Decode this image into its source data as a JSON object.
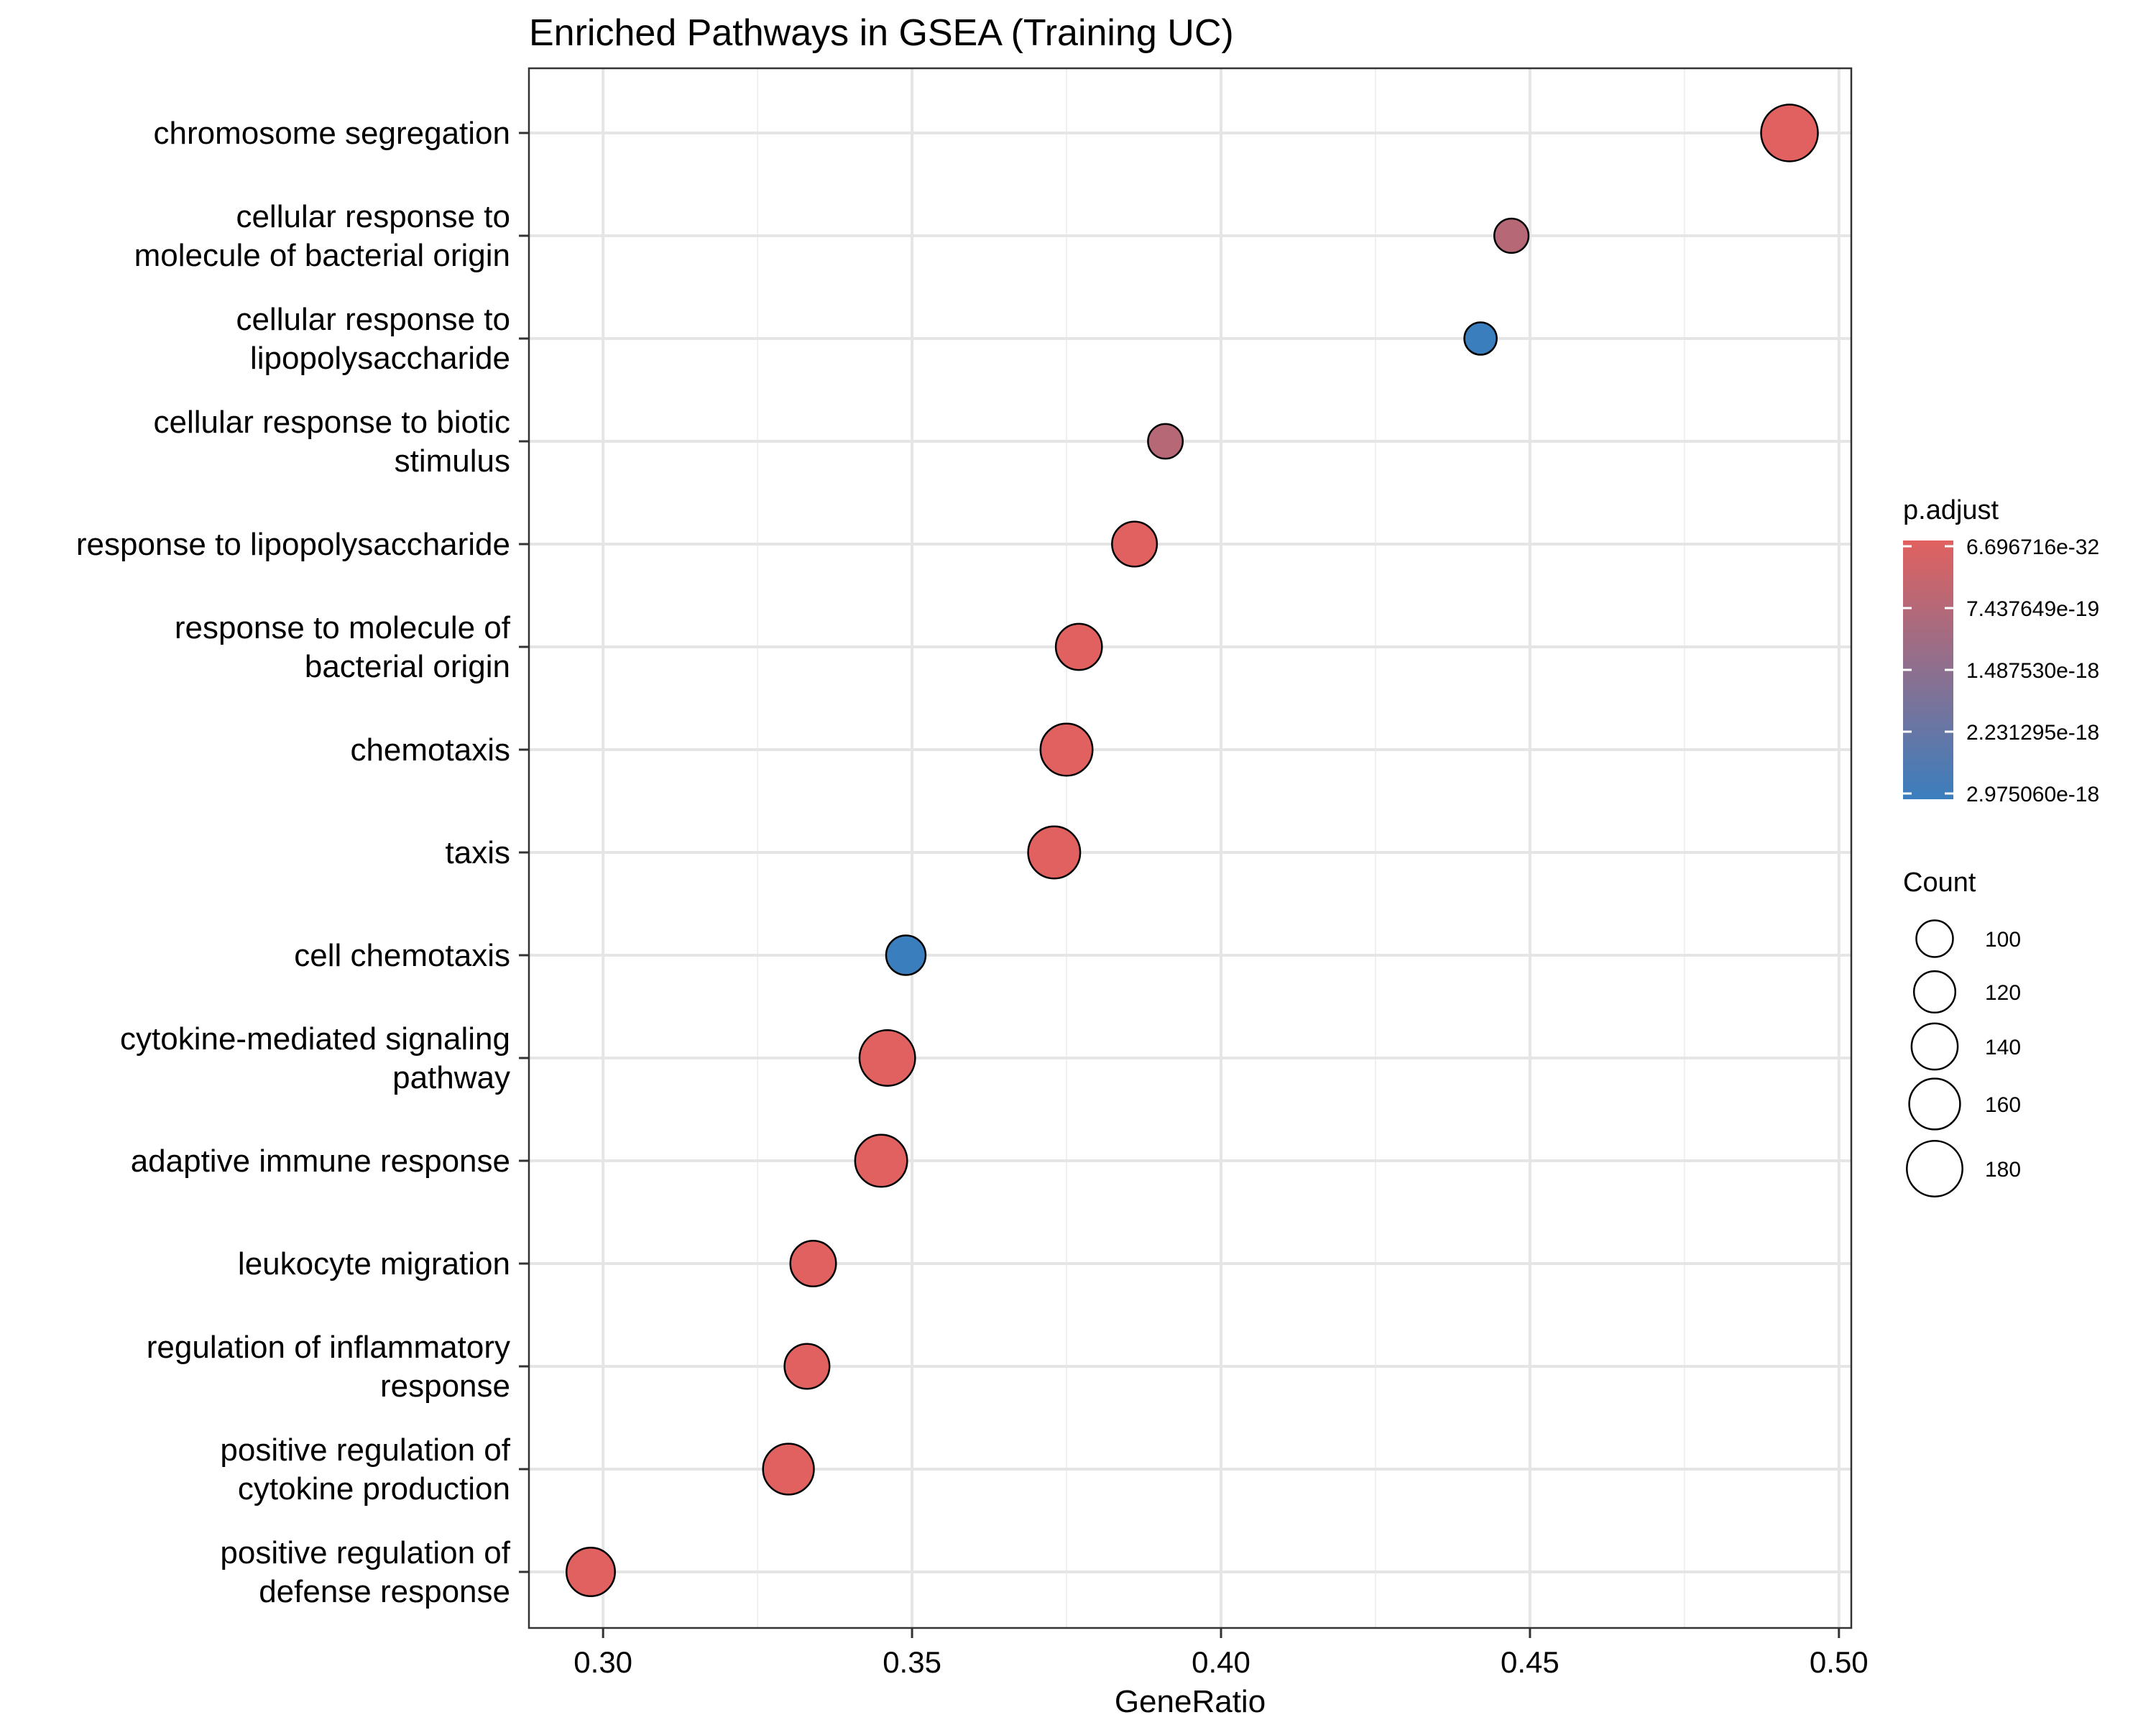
{
  "chart_data": {
    "type": "scatter",
    "title": "Enriched Pathways in GSEA (Training UC)",
    "xlabel": "GeneRatio",
    "ylabel": "",
    "xlim": [
      0.288,
      0.502
    ],
    "xticks": [
      0.3,
      0.35,
      0.4,
      0.45,
      0.5
    ],
    "xtick_labels": [
      "0.30",
      "0.35",
      "0.40",
      "0.45",
      "0.50"
    ],
    "grid": true,
    "categories": [
      "chromosome segregation",
      "cellular response to\nmolecule of bacterial origin",
      "cellular response to\nlipopolysaccharide",
      "cellular response to biotic\nstimulus",
      "response to lipopolysaccharide",
      "response to molecule of\nbacterial origin",
      "chemotaxis",
      "taxis",
      "cell chemotaxis",
      "cytokine-mediated signaling\npathway",
      "adaptive immune response",
      "leukocyte migration",
      "regulation of inflammatory\nresponse",
      "positive regulation of\ncytokine production",
      "positive regulation of\ndefense response"
    ],
    "points": [
      {
        "term": "chromosome segregation",
        "gene_ratio": 0.492,
        "count": 185,
        "p_adjust": 6.7e-32
      },
      {
        "term": "cellular response to molecule of bacterial origin",
        "gene_ratio": 0.447,
        "count": 90,
        "p_adjust": 7.4e-19
      },
      {
        "term": "cellular response to lipopolysaccharide",
        "gene_ratio": 0.442,
        "count": 82,
        "p_adjust": 2.975e-18
      },
      {
        "term": "cellular response to biotic stimulus",
        "gene_ratio": 0.391,
        "count": 92,
        "p_adjust": 7.4e-19
      },
      {
        "term": "response to lipopolysaccharide",
        "gene_ratio": 0.386,
        "count": 135,
        "p_adjust": 1e-25
      },
      {
        "term": "response to molecule of bacterial origin",
        "gene_ratio": 0.377,
        "count": 140,
        "p_adjust": 1e-25
      },
      {
        "term": "chemotaxis",
        "gene_ratio": 0.375,
        "count": 165,
        "p_adjust": 6.7e-32
      },
      {
        "term": "taxis",
        "gene_ratio": 0.373,
        "count": 165,
        "p_adjust": 6.7e-32
      },
      {
        "term": "cell chemotaxis",
        "gene_ratio": 0.349,
        "count": 112,
        "p_adjust": 2.975e-18
      },
      {
        "term": "cytokine-mediated signaling pathway",
        "gene_ratio": 0.346,
        "count": 180,
        "p_adjust": 6.7e-32
      },
      {
        "term": "adaptive immune response",
        "gene_ratio": 0.345,
        "count": 165,
        "p_adjust": 6.7e-32
      },
      {
        "term": "leukocyte migration",
        "gene_ratio": 0.334,
        "count": 138,
        "p_adjust": 6.7e-32
      },
      {
        "term": "regulation of inflammatory response",
        "gene_ratio": 0.333,
        "count": 135,
        "p_adjust": 6.7e-32
      },
      {
        "term": "positive regulation of cytokine production",
        "gene_ratio": 0.33,
        "count": 160,
        "p_adjust": 6.7e-32
      },
      {
        "term": "positive regulation of defense response",
        "gene_ratio": 0.298,
        "count": 150,
        "p_adjust": 6.7e-32
      }
    ],
    "color_legend": {
      "title": "p.adjust",
      "labels": [
        "6.696716e-32",
        "7.437649e-19",
        "1.487530e-18",
        "2.231295e-18",
        "2.975060e-18"
      ],
      "low_color": "#E0615F",
      "high_color": "#3B7EBE"
    },
    "size_legend": {
      "title": "Count",
      "values": [
        100,
        120,
        140,
        160,
        180
      ]
    },
    "legend_position": "right"
  }
}
